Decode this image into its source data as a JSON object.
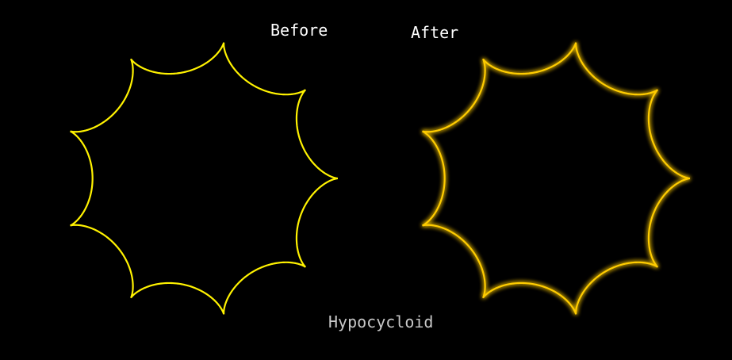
{
  "labels": {
    "before": "Before",
    "after": "After"
  },
  "caption": "Hypocycloid",
  "curves": {
    "before": {
      "cusps": 9,
      "color": "#fff200",
      "glow": false
    },
    "after": {
      "cusps": 9,
      "color": "#ffcc00",
      "glow": true
    }
  },
  "background": "#000000"
}
